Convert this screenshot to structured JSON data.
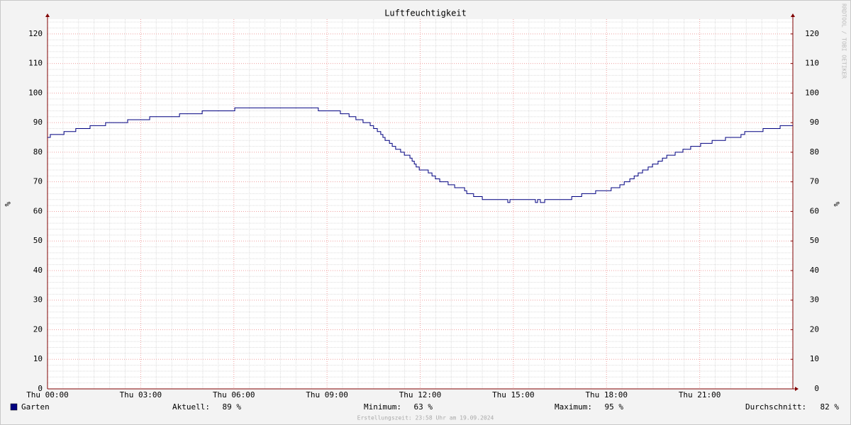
{
  "chart_data": {
    "type": "line",
    "title": "Luftfeuchtigkeit",
    "y_label": "%",
    "y2_label": "%",
    "watermark": "RRDTOOL / TOBI OETIKER",
    "footnote": "Erstellungszeit: 23:58 Uhr am 19.09.2024",
    "x": [
      0,
      0.09,
      0.09,
      0.53,
      0.53,
      0.91,
      0.91,
      1.37,
      1.37,
      1.87,
      1.87,
      2.58,
      2.58,
      3.29,
      3.29,
      4.25,
      4.25,
      4.98,
      4.98,
      6.03,
      6.03,
      8.72,
      8.72,
      9.43,
      9.43,
      9.71,
      9.71,
      9.93,
      9.93,
      10.16,
      10.16,
      10.39,
      10.39,
      10.5,
      10.5,
      10.62,
      10.62,
      10.73,
      10.73,
      10.8,
      10.8,
      10.87,
      10.87,
      11.01,
      11.01,
      11.1,
      11.1,
      11.21,
      11.21,
      11.37,
      11.37,
      11.49,
      11.49,
      11.67,
      11.67,
      11.74,
      11.74,
      11.81,
      11.81,
      11.87,
      11.87,
      11.97,
      11.97,
      12.26,
      12.26,
      12.38,
      12.38,
      12.49,
      12.49,
      12.63,
      12.63,
      12.9,
      12.9,
      13.11,
      13.11,
      13.43,
      13.43,
      13.5,
      13.5,
      13.72,
      13.72,
      14,
      14,
      14.82,
      14.82,
      14.89,
      14.89,
      15.71,
      15.71,
      15.78,
      15.78,
      15.87,
      15.87,
      16.01,
      16.01,
      16.88,
      16.88,
      17.2,
      17.2,
      17.65,
      17.65,
      18.15,
      18.15,
      18.43,
      18.43,
      18.57,
      18.57,
      18.75,
      18.75,
      18.89,
      18.89,
      19.02,
      19.02,
      19.16,
      19.16,
      19.34,
      19.34,
      19.48,
      19.48,
      19.66,
      19.66,
      19.8,
      19.8,
      19.94,
      19.94,
      20.21,
      20.21,
      20.46,
      20.46,
      20.71,
      20.71,
      21.03,
      21.03,
      21.4,
      21.4,
      21.83,
      21.83,
      22.33,
      22.33,
      22.45,
      22.45,
      23.04,
      23.04,
      23.59,
      23.59,
      24
    ],
    "series": [
      {
        "name": "Garten",
        "color": "#000080",
        "values": [
          85,
          85,
          86,
          86,
          87,
          87,
          88,
          88,
          89,
          89,
          90,
          90,
          91,
          91,
          92,
          92,
          93,
          93,
          94,
          94,
          95,
          95,
          94,
          94,
          93,
          93,
          92,
          92,
          91,
          91,
          90,
          90,
          89,
          89,
          88,
          88,
          87,
          87,
          86,
          86,
          85,
          85,
          84,
          84,
          83,
          83,
          82,
          82,
          81,
          81,
          80,
          80,
          79,
          79,
          78,
          78,
          77,
          77,
          76,
          76,
          75,
          75,
          74,
          74,
          73,
          73,
          72,
          72,
          71,
          71,
          70,
          70,
          69,
          69,
          68,
          68,
          67,
          67,
          66,
          66,
          65,
          65,
          64,
          64,
          63,
          63,
          64,
          64,
          63,
          63,
          64,
          64,
          63,
          63,
          64,
          64,
          65,
          65,
          66,
          66,
          67,
          67,
          68,
          68,
          69,
          69,
          70,
          70,
          71,
          71,
          72,
          72,
          73,
          73,
          74,
          74,
          75,
          75,
          76,
          76,
          77,
          77,
          78,
          78,
          79,
          79,
          80,
          80,
          81,
          81,
          82,
          82,
          83,
          83,
          84,
          84,
          85,
          85,
          86,
          86,
          87,
          87,
          88,
          88,
          89,
          89
        ]
      }
    ],
    "xlim": [
      0,
      24
    ],
    "xticks": [
      {
        "value": 0,
        "label": "Thu 00:00"
      },
      {
        "value": 3,
        "label": "Thu 03:00"
      },
      {
        "value": 6,
        "label": "Thu 06:00"
      },
      {
        "value": 9,
        "label": "Thu 09:00"
      },
      {
        "value": 12,
        "label": "Thu 12:00"
      },
      {
        "value": 15,
        "label": "Thu 15:00"
      },
      {
        "value": 18,
        "label": "Thu 18:00"
      },
      {
        "value": 21,
        "label": "Thu 21:00"
      }
    ],
    "ylim": [
      0,
      125
    ],
    "yticks": [
      0,
      10,
      20,
      30,
      40,
      50,
      60,
      70,
      80,
      90,
      100,
      110,
      120
    ],
    "y2lim": [
      0,
      125
    ],
    "y2ticks": [
      0,
      10,
      20,
      30,
      40,
      50,
      60,
      70,
      80,
      90,
      100,
      110,
      120
    ],
    "grid": true,
    "stats": [
      {
        "name": "Aktuell:",
        "value": 89,
        "value_label": "89 %"
      },
      {
        "name": "Minimum:",
        "value": 63,
        "value_label": "63 %"
      },
      {
        "name": "Maximum:",
        "value": 95,
        "value_label": "95 %"
      },
      {
        "name": "Durchschnitt:",
        "value": 82,
        "value_label": "82 %"
      }
    ]
  }
}
